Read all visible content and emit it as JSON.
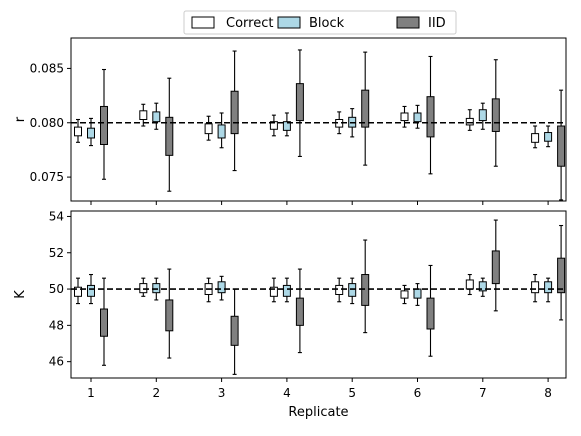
{
  "chart_data": [
    {
      "type": "box",
      "ylabel": "r",
      "xlabel": "",
      "ylim": [
        0.0728,
        0.0878
      ],
      "yticks": [
        0.075,
        0.08,
        0.085
      ],
      "ytick_labels": [
        "0.075",
        "0.080",
        "0.085"
      ],
      "reference_line": 0.08,
      "categories": [
        "1",
        "2",
        "3",
        "4",
        "5",
        "6",
        "7",
        "8"
      ],
      "series": [
        {
          "name": "Correct",
          "color": "#ffffff",
          "boxes": [
            {
              "whislo": 0.0782,
              "q1": 0.0788,
              "q3": 0.0796,
              "whishi": 0.0803
            },
            {
              "whislo": 0.0797,
              "q1": 0.0803,
              "q3": 0.0811,
              "whishi": 0.0817
            },
            {
              "whislo": 0.0784,
              "q1": 0.079,
              "q3": 0.0799,
              "whishi": 0.0806
            },
            {
              "whislo": 0.0788,
              "q1": 0.0794,
              "q3": 0.0801,
              "whishi": 0.0807
            },
            {
              "whislo": 0.079,
              "q1": 0.0796,
              "q3": 0.0803,
              "whishi": 0.081
            },
            {
              "whislo": 0.0796,
              "q1": 0.0802,
              "q3": 0.0809,
              "whishi": 0.0815
            },
            {
              "whislo": 0.0793,
              "q1": 0.0798,
              "q3": 0.0804,
              "whishi": 0.0812
            },
            {
              "whislo": 0.0777,
              "q1": 0.0782,
              "q3": 0.079,
              "whishi": 0.0797
            }
          ]
        },
        {
          "name": "Block",
          "color": "#add8e6",
          "boxes": [
            {
              "whislo": 0.0779,
              "q1": 0.0786,
              "q3": 0.0795,
              "whishi": 0.0804
            },
            {
              "whislo": 0.0794,
              "q1": 0.0801,
              "q3": 0.081,
              "whishi": 0.0818
            },
            {
              "whislo": 0.0777,
              "q1": 0.0786,
              "q3": 0.0798,
              "whishi": 0.0809
            },
            {
              "whislo": 0.0788,
              "q1": 0.0793,
              "q3": 0.0801,
              "whishi": 0.0809
            },
            {
              "whislo": 0.0787,
              "q1": 0.0796,
              "q3": 0.0805,
              "whishi": 0.0813
            },
            {
              "whislo": 0.0795,
              "q1": 0.0801,
              "q3": 0.0809,
              "whishi": 0.0816
            },
            {
              "whislo": 0.0794,
              "q1": 0.0802,
              "q3": 0.0812,
              "whishi": 0.0818
            },
            {
              "whislo": 0.0778,
              "q1": 0.0783,
              "q3": 0.0791,
              "whishi": 0.0797
            }
          ]
        },
        {
          "name": "IID",
          "color": "#808080",
          "boxes": [
            {
              "whislo": 0.0748,
              "q1": 0.078,
              "q3": 0.0815,
              "whishi": 0.0849
            },
            {
              "whislo": 0.0737,
              "q1": 0.077,
              "q3": 0.0805,
              "whishi": 0.0841
            },
            {
              "whislo": 0.0756,
              "q1": 0.079,
              "q3": 0.0829,
              "whishi": 0.0866
            },
            {
              "whislo": 0.0769,
              "q1": 0.0802,
              "q3": 0.0836,
              "whishi": 0.0867
            },
            {
              "whislo": 0.0761,
              "q1": 0.0796,
              "q3": 0.083,
              "whishi": 0.0865
            },
            {
              "whislo": 0.0753,
              "q1": 0.0787,
              "q3": 0.0824,
              "whishi": 0.0861
            },
            {
              "whislo": 0.076,
              "q1": 0.0792,
              "q3": 0.0822,
              "whishi": 0.0858
            },
            {
              "whislo": 0.0729,
              "q1": 0.076,
              "q3": 0.0797,
              "whishi": 0.083
            }
          ]
        }
      ]
    },
    {
      "type": "box",
      "ylabel": "K",
      "xlabel": "Replicate",
      "ylim": [
        45.1,
        54.3
      ],
      "yticks": [
        46,
        48,
        50,
        52,
        54
      ],
      "ytick_labels": [
        "46",
        "48",
        "50",
        "52",
        "54"
      ],
      "reference_line": 50,
      "categories": [
        "1",
        "2",
        "3",
        "4",
        "5",
        "6",
        "7",
        "8"
      ],
      "series": [
        {
          "name": "Correct",
          "color": "#ffffff",
          "boxes": [
            {
              "whislo": 49.2,
              "q1": 49.6,
              "q3": 50.1,
              "whishi": 50.6
            },
            {
              "whislo": 49.6,
              "q1": 49.8,
              "q3": 50.3,
              "whishi": 50.6
            },
            {
              "whislo": 49.3,
              "q1": 49.7,
              "q3": 50.3,
              "whishi": 50.6
            },
            {
              "whislo": 49.3,
              "q1": 49.6,
              "q3": 50.1,
              "whishi": 50.6
            },
            {
              "whislo": 49.3,
              "q1": 49.7,
              "q3": 50.2,
              "whishi": 50.6
            },
            {
              "whislo": 49.2,
              "q1": 49.5,
              "q3": 49.9,
              "whishi": 50.2
            },
            {
              "whislo": 49.7,
              "q1": 50.0,
              "q3": 50.5,
              "whishi": 50.8
            },
            {
              "whislo": 49.3,
              "q1": 49.8,
              "q3": 50.4,
              "whishi": 50.8
            }
          ]
        },
        {
          "name": "Block",
          "color": "#add8e6",
          "boxes": [
            {
              "whislo": 49.2,
              "q1": 49.6,
              "q3": 50.2,
              "whishi": 50.8
            },
            {
              "whislo": 49.4,
              "q1": 49.8,
              "q3": 50.3,
              "whishi": 50.6
            },
            {
              "whislo": 49.4,
              "q1": 49.8,
              "q3": 50.4,
              "whishi": 50.7
            },
            {
              "whislo": 49.3,
              "q1": 49.6,
              "q3": 50.2,
              "whishi": 50.6
            },
            {
              "whislo": 49.2,
              "q1": 49.6,
              "q3": 50.3,
              "whishi": 50.6
            },
            {
              "whislo": 49.1,
              "q1": 49.5,
              "q3": 50.0,
              "whishi": 50.3
            },
            {
              "whislo": 49.6,
              "q1": 49.9,
              "q3": 50.4,
              "whishi": 50.6
            },
            {
              "whislo": 49.3,
              "q1": 49.8,
              "q3": 50.4,
              "whishi": 50.6
            }
          ]
        },
        {
          "name": "IID",
          "color": "#808080",
          "boxes": [
            {
              "whislo": 45.8,
              "q1": 47.4,
              "q3": 48.9,
              "whishi": 50.6
            },
            {
              "whislo": 46.2,
              "q1": 47.7,
              "q3": 49.4,
              "whishi": 51.1
            },
            {
              "whislo": 45.3,
              "q1": 46.9,
              "q3": 48.5,
              "whishi": 50.0
            },
            {
              "whislo": 46.5,
              "q1": 48.0,
              "q3": 49.5,
              "whishi": 51.1
            },
            {
              "whislo": 47.6,
              "q1": 49.1,
              "q3": 50.8,
              "whishi": 52.7
            },
            {
              "whislo": 46.3,
              "q1": 47.8,
              "q3": 49.5,
              "whishi": 51.3
            },
            {
              "whislo": 48.8,
              "q1": 50.3,
              "q3": 52.1,
              "whishi": 53.8
            },
            {
              "whislo": 48.3,
              "q1": 49.8,
              "q3": 51.7,
              "whishi": 53.5
            }
          ]
        }
      ]
    }
  ],
  "legend": {
    "placement": "top-center",
    "entries": [
      {
        "label": "Correct",
        "color": "#ffffff"
      },
      {
        "label": "Block",
        "color": "#add8e6"
      },
      {
        "label": "IID",
        "color": "#808080"
      }
    ]
  }
}
